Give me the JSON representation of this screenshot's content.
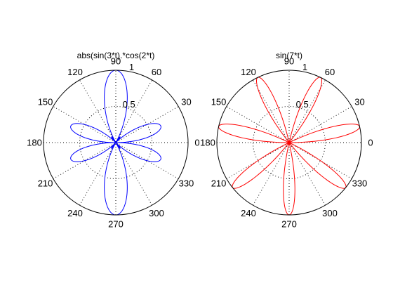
{
  "chart_data": [
    {
      "type": "polar",
      "title": "abs(sin(3*t).*cos(2*t)",
      "function": "abs(sin(3*t).*cos(2*t))",
      "t_range_deg": [
        0,
        360
      ],
      "rlim": [
        0,
        1
      ],
      "r_ticks": [
        "0.5",
        "1"
      ],
      "theta_ticks": [
        "0",
        "30",
        "60",
        "90",
        "120",
        "150",
        "180",
        "210",
        "240",
        "270",
        "300",
        "330"
      ],
      "grid": true,
      "line_color": "#0000ff"
    },
    {
      "type": "polar",
      "title": "sin(7*t)",
      "function": "sin(7*t)",
      "t_range_deg": [
        0,
        360
      ],
      "rlim": [
        0,
        1
      ],
      "r_ticks": [
        "0.5",
        "1"
      ],
      "theta_ticks": [
        "0",
        "30",
        "60",
        "90",
        "120",
        "150",
        "180",
        "210",
        "240",
        "270",
        "300",
        "330"
      ],
      "grid": true,
      "line_color": "#ff0000"
    }
  ]
}
